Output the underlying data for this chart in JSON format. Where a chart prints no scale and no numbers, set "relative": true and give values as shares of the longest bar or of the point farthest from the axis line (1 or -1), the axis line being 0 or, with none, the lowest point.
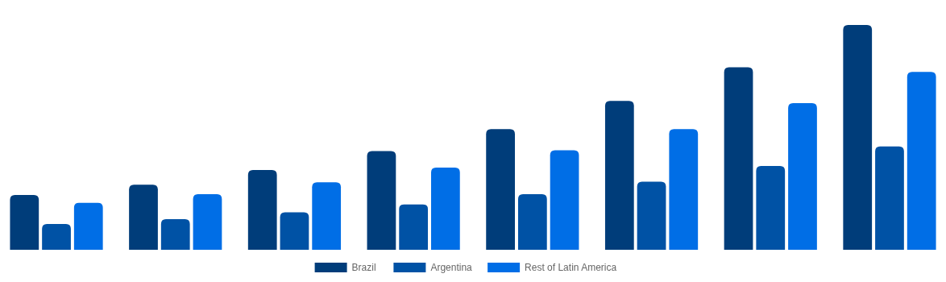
{
  "chart_data": {
    "type": "bar",
    "relative": true,
    "categories": [
      null,
      null,
      null,
      null,
      null,
      null,
      null,
      null
    ],
    "series": [
      {
        "name": "Brazil",
        "color": "#003d7a",
        "values": [
          0.244,
          0.289,
          0.355,
          0.439,
          0.537,
          0.662,
          0.812,
          1
        ]
      },
      {
        "name": "Argentina",
        "color": "#0052a5",
        "values": [
          0.115,
          0.136,
          0.167,
          0.202,
          0.247,
          0.303,
          0.373,
          0.46
        ]
      },
      {
        "name": "Rest of Latin America",
        "color": "#006ee6",
        "values": [
          0.209,
          0.247,
          0.3,
          0.366,
          0.443,
          0.537,
          0.652,
          0.791
        ]
      }
    ],
    "legend": "bottom"
  }
}
